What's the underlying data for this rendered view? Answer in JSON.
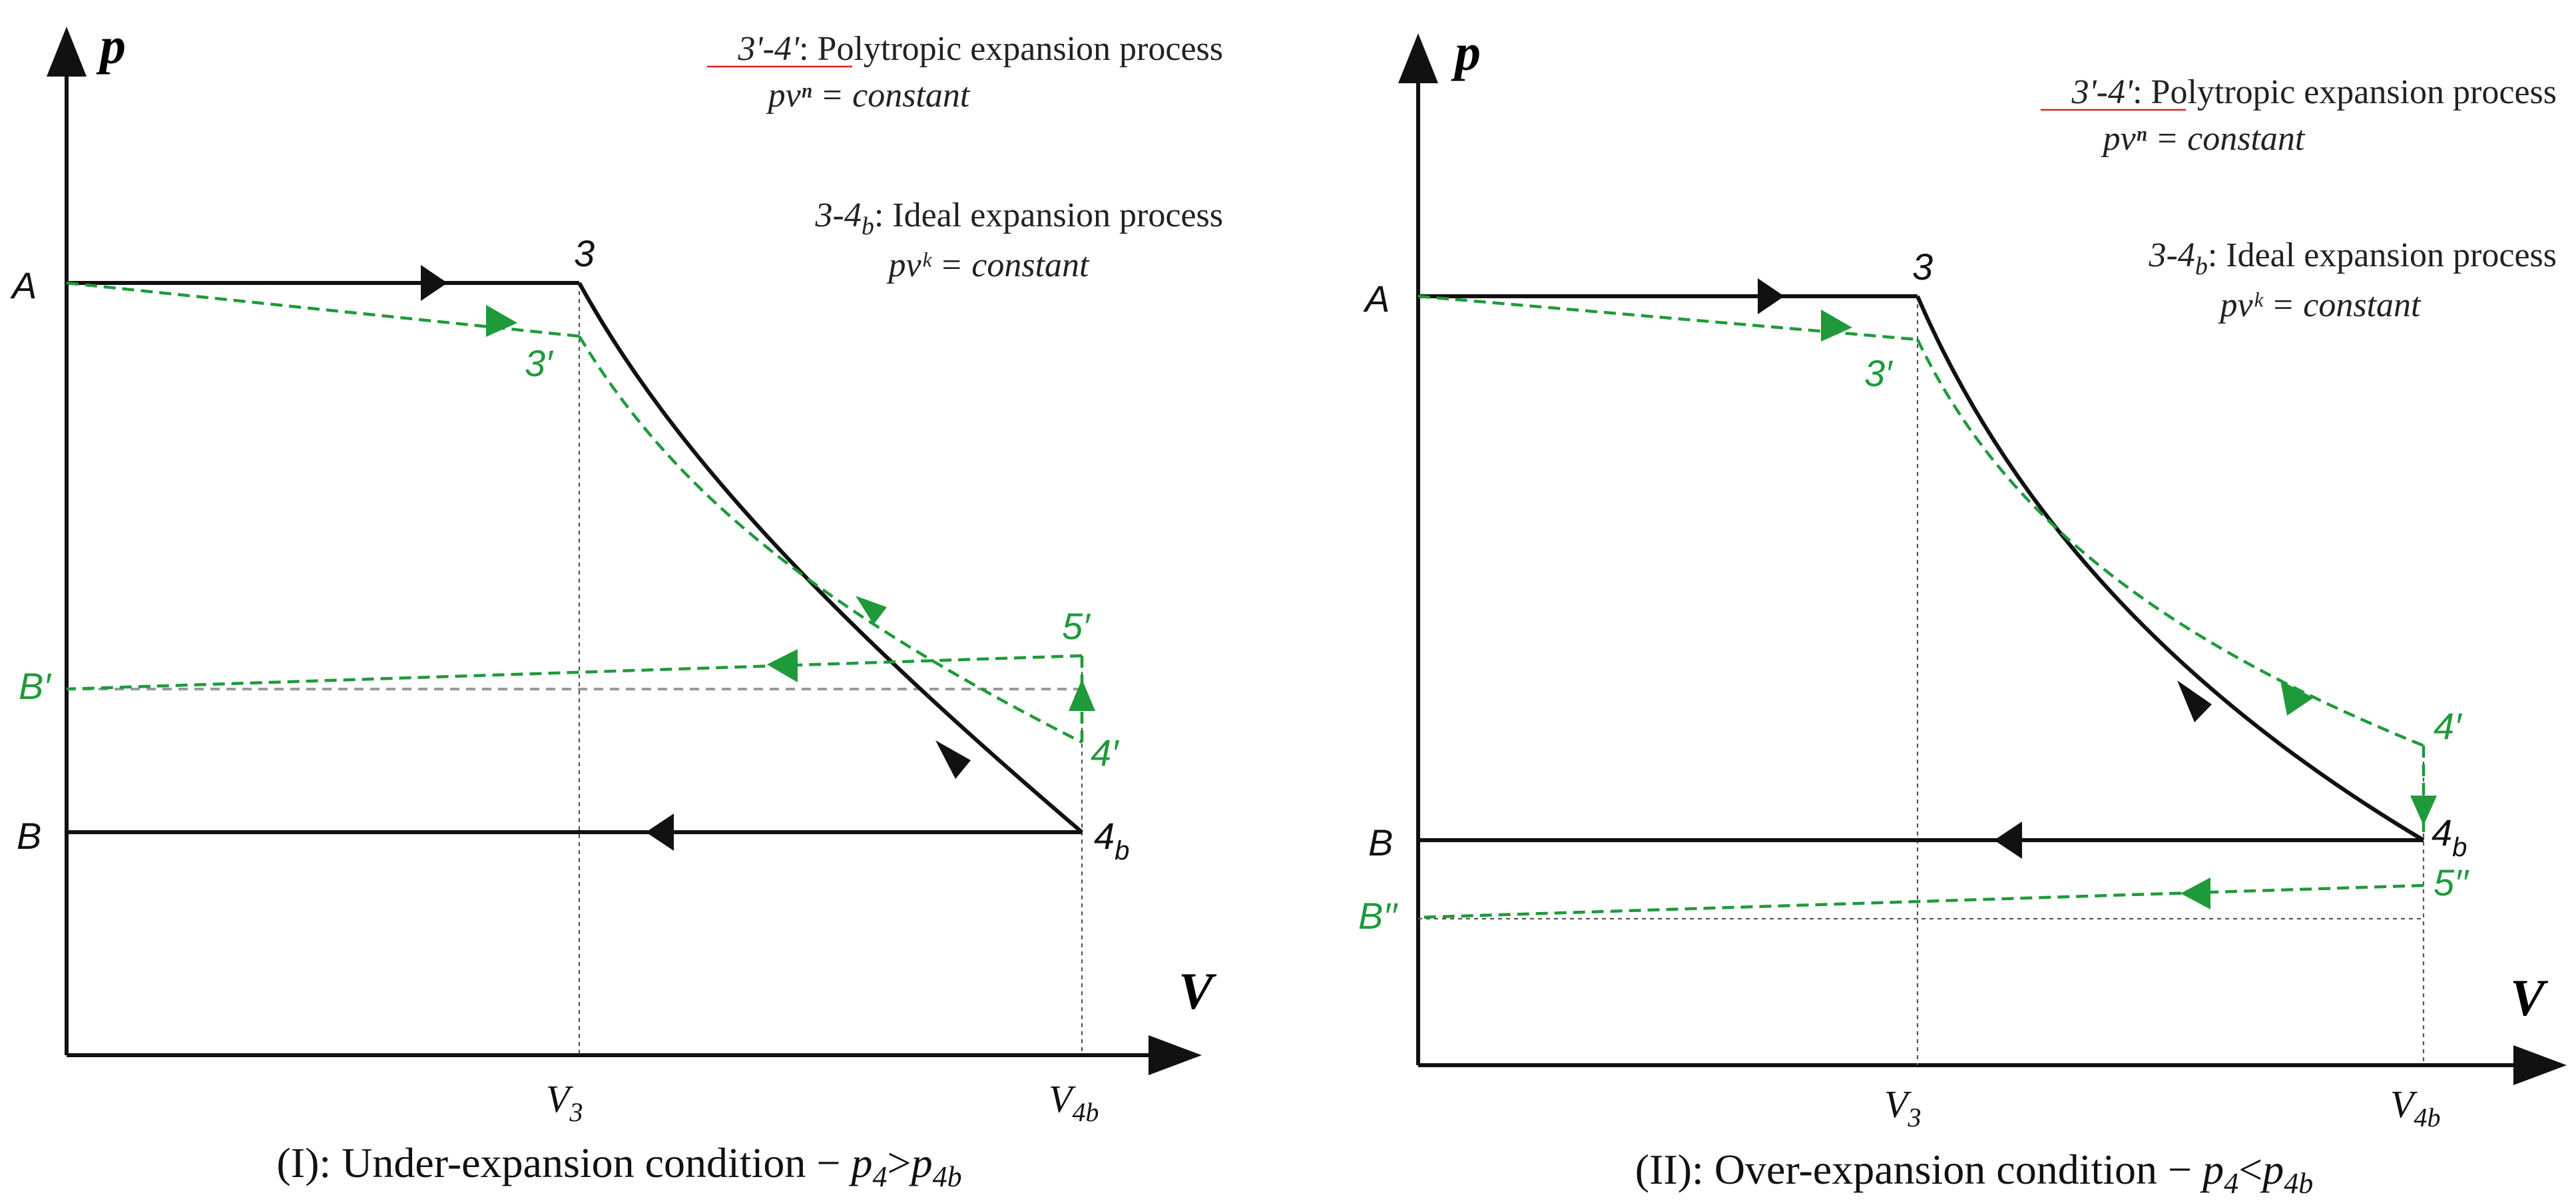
{
  "panels": [
    {
      "id": "under",
      "axis_y": "p",
      "axis_x": "V",
      "note1_proc": "3'-4'",
      "note1_colon": ":",
      "note1_title": "Polytropic",
      "note1_rest": "expansion process",
      "note1_eq": "pvⁿ = constant",
      "note2_proc": "3-4",
      "note2_sub": "b",
      "note2_colon": ":",
      "note2_title": "Ideal expansion process",
      "note2_eq": "pvᵏ = constant",
      "labels": {
        "A": "A",
        "B": "B",
        "Bp": "B′",
        "p3": "3",
        "p3p": "3′",
        "p4b_main": "4",
        "p4b_sub": "b",
        "p4p": "4′",
        "p5p": "5′"
      },
      "ticks": {
        "v3": "V",
        "v3_sub": "3",
        "v4b": "V",
        "v4b_sub": "4b"
      },
      "caption_pre": "(I): Under-expansion condition − ",
      "caption_p4": "p",
      "caption_p4_sub": "4",
      "caption_op": ">",
      "caption_p4b": "p",
      "caption_p4b_sub": "4b"
    },
    {
      "id": "over",
      "axis_y": "p",
      "axis_x": "V",
      "note1_proc": "3'-4'",
      "note1_colon": ":",
      "note1_title": "Polytropic",
      "note1_rest": "expansion process",
      "note1_eq": "pvⁿ = constant",
      "note2_proc": "3-4",
      "note2_sub": "b",
      "note2_colon": ":",
      "note2_title": "Ideal expansion process",
      "note2_eq": "pvᵏ = constant",
      "labels": {
        "A": "A",
        "B": "B",
        "Bpp": "B′′",
        "p3": "3",
        "p3p": "3′",
        "p4b_main": "4",
        "p4b_sub": "b",
        "p4p": "4′",
        "p5pp": "5′′"
      },
      "ticks": {
        "v3": "V",
        "v3_sub": "3",
        "v4b": "V",
        "v4b_sub": "4b"
      },
      "caption_pre": "(II): Over-expansion condition − ",
      "caption_p4": "p",
      "caption_p4_sub": "4",
      "caption_op": "<",
      "caption_p4b": "p",
      "caption_p4b_sub": "4b"
    }
  ],
  "colors": {
    "process_green": "#1f9a3a",
    "ideal_black": "#111111"
  }
}
